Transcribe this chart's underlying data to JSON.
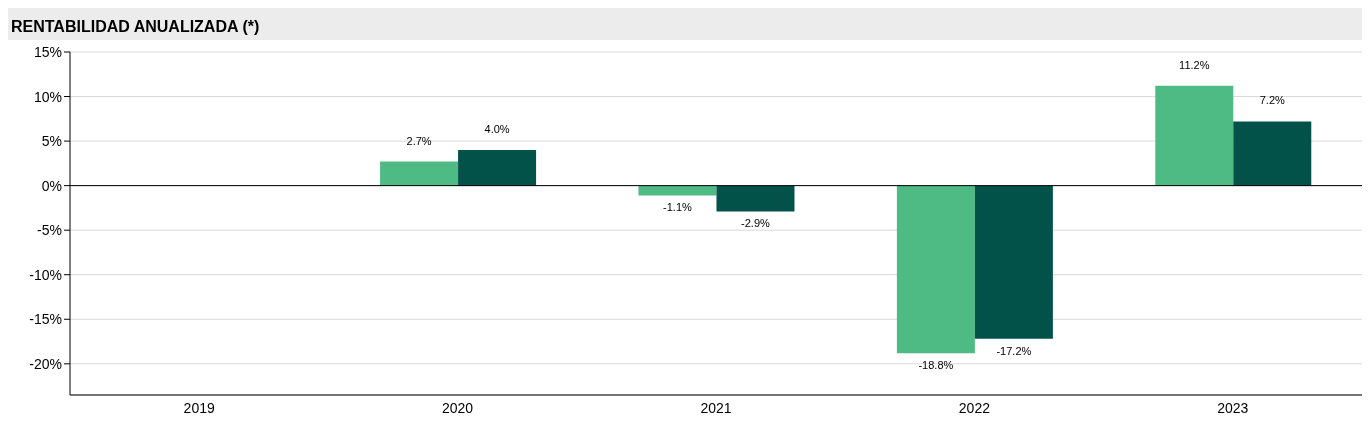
{
  "chart_data": {
    "type": "bar",
    "title": "RENTABILIDAD ANUALIZADA (*)",
    "categories": [
      "2019",
      "2020",
      "2021",
      "2022",
      "2023"
    ],
    "series": [
      {
        "color": "#4fbb84",
        "values": [
          null,
          2.7,
          -1.1,
          -18.8,
          11.2
        ],
        "value_labels": [
          null,
          "2.7%",
          "-1.1%",
          "-18.8%",
          "11.2%"
        ]
      },
      {
        "color": "#03524a",
        "values": [
          null,
          4.0,
          -2.9,
          -17.2,
          7.2
        ],
        "value_labels": [
          null,
          "4.0%",
          "-2.9%",
          "-17.2%",
          "7.2%"
        ]
      }
    ],
    "ylim": [
      -23.5,
      15
    ],
    "yticks": [
      {
        "value": 15,
        "label": "15%"
      },
      {
        "value": 10,
        "label": "10%"
      },
      {
        "value": 5,
        "label": "5%"
      },
      {
        "value": 0,
        "label": "0%"
      },
      {
        "value": -5,
        "label": "-5%"
      },
      {
        "value": -10,
        "label": "-10%"
      },
      {
        "value": -15,
        "label": "-15%"
      },
      {
        "value": -20,
        "label": "-20%"
      }
    ],
    "ref_lines": [
      {
        "axis": "y",
        "value": 0,
        "color": "#000000"
      }
    ],
    "grid": "y",
    "legend": false
  }
}
